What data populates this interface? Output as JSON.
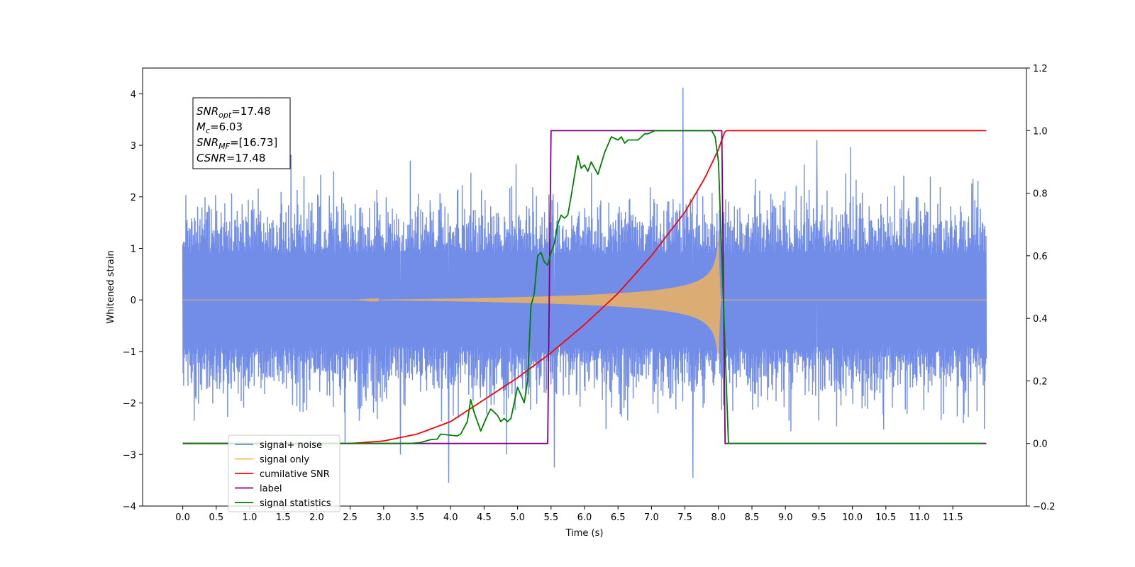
{
  "chart_data": {
    "type": "line",
    "xlabel": "Time (s)",
    "ylabel": "Whitened strain",
    "xlim": [
      -0.6,
      12.6
    ],
    "ylim_left": [
      -4,
      4.5
    ],
    "ylim_right": [
      -0.2,
      1.2
    ],
    "x_ticks": [
      "0.0",
      "0.5",
      "1.0",
      "1.5",
      "2.0",
      "2.5",
      "3.0",
      "3.5",
      "4.0",
      "4.5",
      "5.0",
      "5.5",
      "6.0",
      "6.5",
      "7.0",
      "7.5",
      "8.0",
      "8.5",
      "9.0",
      "9.5",
      "10.0",
      "10.5",
      "11.0",
      "11.5"
    ],
    "y_ticks_left": [
      "−4",
      "−3",
      "−2",
      "−1",
      "0",
      "1",
      "2",
      "3",
      "4"
    ],
    "y_ticks_right": [
      "−0.2",
      "0.0",
      "0.2",
      "0.4",
      "0.6",
      "0.8",
      "1.0",
      "1.2"
    ],
    "annotation": [
      {
        "main": "SNR",
        "sub": "opt",
        "rest": "=17.48"
      },
      {
        "main": "M",
        "sub": "c",
        "rest": "=6.03"
      },
      {
        "main": "SNR",
        "sub": "MF",
        "rest": "=[16.73]"
      },
      {
        "main": "CSNR",
        "sub": "",
        "rest": "=17.48"
      }
    ],
    "legend_position": "lower-left",
    "series": [
      {
        "name": "signal+ noise",
        "color": "#6a87e6",
        "axis": "left",
        "x_range": [
          0,
          12
        ],
        "typical_amplitude": 1.4,
        "max": 4.12,
        "min": -3.55,
        "outliers": [
          [
            7.47,
            4.12
          ],
          [
            3.97,
            -3.55
          ],
          [
            7.62,
            -3.45
          ],
          [
            5.55,
            -3.25
          ],
          [
            9.47,
            3.1
          ],
          [
            3.25,
            -3.0
          ]
        ]
      },
      {
        "name": "signal only",
        "color": "#ffb84d",
        "axis": "left",
        "chirp_start": 2.6,
        "merger": 8.0,
        "ringdown_end": 8.1,
        "peak_amplitude": 1.5
      },
      {
        "name": "cumilative SNR",
        "color": "#ff0000",
        "axis": "right",
        "x": [
          0,
          2.5,
          3.0,
          3.5,
          4.0,
          4.5,
          5.0,
          5.5,
          6.0,
          6.5,
          7.0,
          7.5,
          7.8,
          8.0,
          8.1,
          12.0
        ],
        "y": [
          0,
          0.0,
          0.008,
          0.03,
          0.07,
          0.14,
          0.21,
          0.29,
          0.38,
          0.48,
          0.6,
          0.74,
          0.85,
          0.94,
          1.0,
          1.0
        ]
      },
      {
        "name": "label",
        "color": "#800080",
        "axis": "right",
        "x": [
          0,
          5.45,
          5.5,
          8.05,
          8.1,
          12.0
        ],
        "y": [
          0,
          0,
          1,
          1,
          0,
          0
        ]
      },
      {
        "name": "signal statistics",
        "color": "#008000",
        "axis": "right",
        "x": [
          0,
          3.4,
          3.55,
          3.7,
          3.8,
          3.85,
          4.1,
          4.15,
          4.25,
          4.3,
          4.35,
          4.45,
          4.55,
          4.6,
          4.65,
          4.7,
          4.75,
          4.8,
          4.85,
          4.9,
          5.0,
          5.1,
          5.15,
          5.2,
          5.25,
          5.3,
          5.35,
          5.4,
          5.45,
          5.5,
          5.55,
          5.6,
          5.65,
          5.7,
          5.75,
          5.8,
          5.9,
          5.95,
          6.0,
          6.05,
          6.1,
          6.2,
          6.3,
          6.4,
          6.5,
          6.55,
          6.6,
          6.65,
          6.7,
          6.8,
          6.85,
          6.9,
          6.95,
          7.0,
          7.05,
          7.1,
          7.5,
          7.9,
          7.95,
          8.0,
          8.05,
          8.15,
          11.95
        ],
        "y": [
          0,
          0,
          0.003,
          0.012,
          0.014,
          0.03,
          0.024,
          0.03,
          0.07,
          0.14,
          0.1,
          0.04,
          0.09,
          0.11,
          0.1,
          0.09,
          0.07,
          0.08,
          0.07,
          0.08,
          0.18,
          0.13,
          0.2,
          0.44,
          0.48,
          0.6,
          0.61,
          0.58,
          0.57,
          0.61,
          0.64,
          0.7,
          0.73,
          0.72,
          0.73,
          0.79,
          0.92,
          0.88,
          0.89,
          0.87,
          0.9,
          0.86,
          0.93,
          0.98,
          0.97,
          0.98,
          0.96,
          0.97,
          0.97,
          0.97,
          0.98,
          0.99,
          0.99,
          0.995,
          1.0,
          1.0,
          1.0,
          1.0,
          0.98,
          0.9,
          0.6,
          0.0,
          0.0
        ]
      }
    ]
  }
}
